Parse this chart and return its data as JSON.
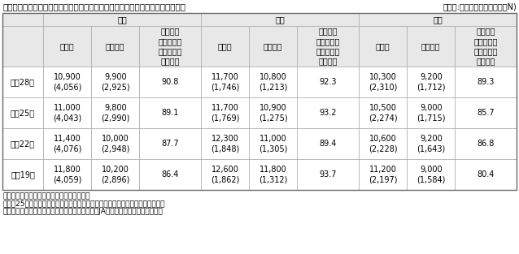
{
  "title": "図表５　疾病入院給付金日額の必要額と疾病入院給付金日額（全生保）〔性別〕",
  "unit_note": "（単位:円、（　）内の数値はN)",
  "footnotes": [
    "＊平均加入金額を平均必要額で除して計算。",
    "＊平成25年調査までは、「必要額」ではなく「希望する額」として尋ねていた。",
    "＊全生保には民保（かんぽ生命を含む）、簡保、JA、県民共済・生協等を含む。"
  ],
  "col_groups": [
    "全体",
    "男性",
    "女性"
  ],
  "sub_headers": [
    "必要額",
    "加入金額",
    "必要額に\n対する加入\n金額の割合\n（％）＊",
    "必要額",
    "加入金額",
    "必要額に\n対する加入\n金額の割合\n（％）＊",
    "必要額",
    "加入金額",
    "必要額に\n対する加入\n金額の割合\n（％）＊"
  ],
  "rows": [
    {
      "label": "平成28年",
      "values": [
        "10,900\n(4,056)",
        "9,900\n(2,925)",
        "90.8",
        "11,700\n(1,746)",
        "10,800\n(1,213)",
        "92.3",
        "10,300\n(2,310)",
        "9,200\n(1,712)",
        "89.3"
      ]
    },
    {
      "label": "平成25年",
      "values": [
        "11,000\n(4,043)",
        "9,800\n(2,990)",
        "89.1",
        "11,700\n(1,769)",
        "10,900\n(1,275)",
        "93.2",
        "10,500\n(2,274)",
        "9,000\n(1,715)",
        "85.7"
      ]
    },
    {
      "label": "平成22年",
      "values": [
        "11,400\n(4,076)",
        "10,000\n(2,948)",
        "87.7",
        "12,300\n(1,848)",
        "11,000\n(1,305)",
        "89.4",
        "10,600\n(2,228)",
        "9,200\n(1,643)",
        "86.8"
      ]
    },
    {
      "label": "平成19年",
      "values": [
        "11,800\n(4,059)",
        "10,200\n(2,896)",
        "86.4",
        "12,600\n(1,862)",
        "11,800\n(1,312)",
        "93.7",
        "11,200\n(2,197)",
        "9,000\n(1,584)",
        "80.4"
      ]
    }
  ],
  "bg_header": "#e8e8e8",
  "title_fontsize": 7.5,
  "cell_fontsize": 7.0,
  "header_fontsize": 7.0,
  "footnote_fontsize": 6.5
}
